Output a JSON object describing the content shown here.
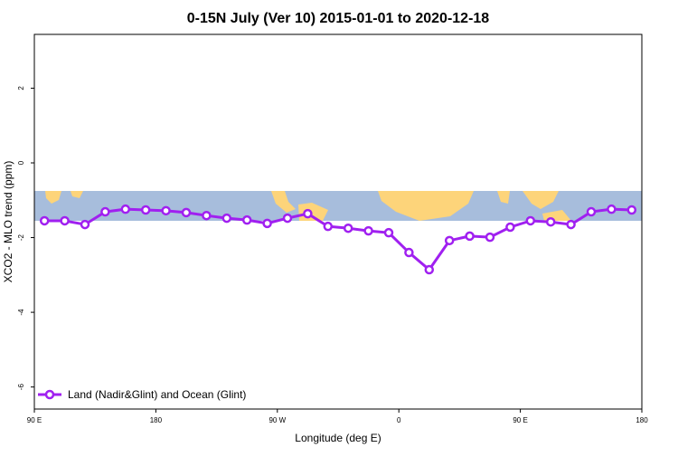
{
  "chart_data": {
    "type": "line",
    "title": "0-15N July (Ver 10)   2015-01-01 to 2020-12-18",
    "x_label": "Longitude (deg E)",
    "y_label": "XCO2 - MLO trend (ppm)",
    "x": [
      97.5,
      112.5,
      127.5,
      142.5,
      157.5,
      172.5,
      187.5,
      202.5,
      217.5,
      232.5,
      247.5,
      262.5,
      277.5,
      292.5,
      307.5,
      322.5,
      337.5,
      352.5,
      367.5,
      382.5,
      397.5,
      412.5,
      427.5,
      442.5,
      457.5,
      472.5,
      487.5,
      502.5,
      517.5,
      532.5
    ],
    "series": [
      {
        "name": "Land (Nadir&Glint) and Ocean (Glint)",
        "color": "#a020f0",
        "values": [
          -1.55,
          -1.55,
          -1.65,
          -1.31,
          -1.24,
          -1.26,
          -1.28,
          -1.33,
          -1.41,
          -1.48,
          -1.53,
          -1.62,
          -1.48,
          -1.36,
          -1.7,
          -1.75,
          -1.82,
          -1.87,
          -2.4,
          -2.86,
          -2.08,
          -1.96,
          -1.99,
          -1.72,
          -1.55,
          -1.58,
          -1.65,
          -1.31,
          -1.24,
          -1.26
        ]
      }
    ],
    "xlim": [
      90,
      540
    ],
    "xticks": [
      {
        "value": 90,
        "label": "90 E"
      },
      {
        "value": 180,
        "label": "180"
      },
      {
        "value": 270,
        "label": "90 W"
      },
      {
        "value": 360,
        "label": "0"
      },
      {
        "value": 450,
        "label": "90 E"
      },
      {
        "value": 540,
        "label": "180"
      }
    ],
    "ylim": [
      -6.59,
      3.44
    ],
    "yticks": [
      2,
      0,
      -2,
      -4,
      -6
    ],
    "legend": "bottom-left"
  }
}
